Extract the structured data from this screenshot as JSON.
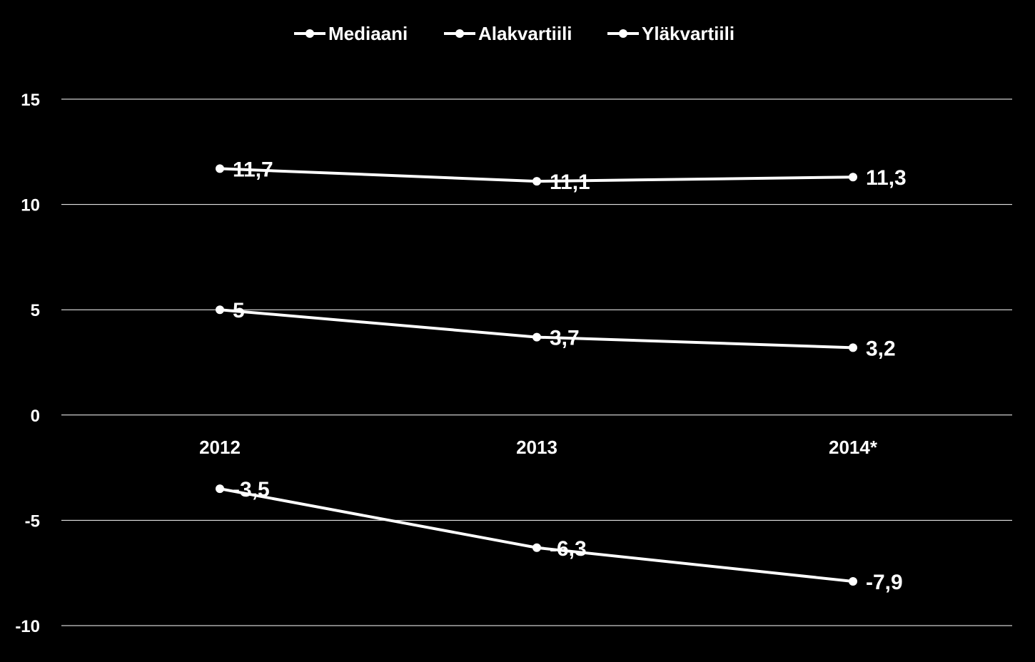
{
  "chart_data": {
    "type": "line",
    "categories": [
      "2012",
      "2013",
      "2014*"
    ],
    "series": [
      {
        "name": "Mediaani",
        "values": [
          5,
          3.7,
          3.2
        ],
        "labels": [
          "5",
          "3,7",
          "3,2"
        ]
      },
      {
        "name": "Alakvartiili",
        "values": [
          -3.5,
          -6.3,
          -7.9
        ],
        "labels": [
          "-3,5",
          "-6,3",
          "-7,9"
        ]
      },
      {
        "name": "Yläkvartiili",
        "values": [
          11.7,
          11.1,
          11.3
        ],
        "labels": [
          "11,7",
          "11,1",
          "11,3"
        ]
      }
    ],
    "y_ticks": [
      "15",
      "10",
      "5",
      "0",
      "-5",
      "-10"
    ],
    "ylim": [
      -10,
      15
    ],
    "grid": true,
    "legend_position": "top",
    "colors": {
      "background": "#000000",
      "line": "#ffffff",
      "grid": "#ffffff",
      "text": "#ffffff"
    }
  }
}
